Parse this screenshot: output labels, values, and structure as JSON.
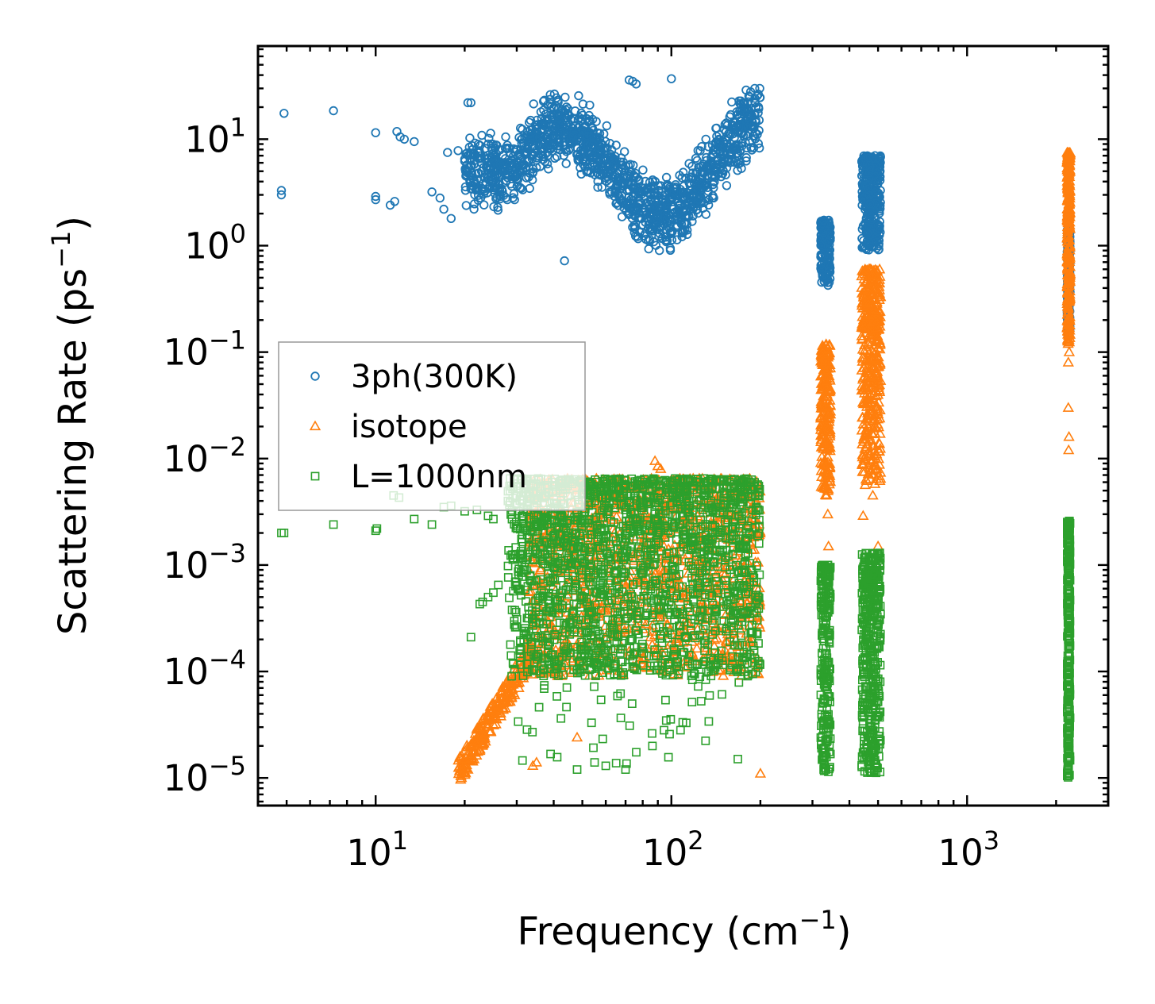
{
  "chart_data": {
    "type": "scatter",
    "xscale": "log",
    "yscale": "log",
    "xlim": [
      4,
      3000
    ],
    "ylim": [
      5.5e-06,
      75
    ],
    "xlabel": "Frequency (cm",
    "xlabel_exp": "−1",
    "xlabel_close": ")",
    "ylabel": "Scattering Rate (ps",
    "ylabel_exp": "−1",
    "ylabel_close": ")",
    "x_ticks": [
      {
        "value": 10,
        "base": "10",
        "exp": "1"
      },
      {
        "value": 100,
        "base": "10",
        "exp": "2"
      },
      {
        "value": 1000,
        "base": "10",
        "exp": "3"
      }
    ],
    "y_ticks": [
      {
        "value": 10,
        "base": "10",
        "exp": "1"
      },
      {
        "value": 1,
        "base": "10",
        "exp": "0"
      },
      {
        "value": 0.1,
        "base": "10",
        "exp": "−1"
      },
      {
        "value": 0.01,
        "base": "10",
        "exp": "−2"
      },
      {
        "value": 0.001,
        "base": "10",
        "exp": "−3"
      },
      {
        "value": 0.0001,
        "base": "10",
        "exp": "−4"
      },
      {
        "value": 1e-05,
        "base": "10",
        "exp": "−5"
      }
    ],
    "legend_position": "center-left",
    "series": [
      {
        "name": "3ph(300K)",
        "marker": "circle",
        "color": "#1f77b4",
        "clusters": [
          {
            "x": [
              4.8,
              4.8
            ],
            "y": [
              3.0,
              3.3
            ]
          },
          {
            "x": [
              4.9
            ],
            "y": [
              17.5
            ]
          },
          {
            "x": [
              7.2
            ],
            "y": [
              18.5
            ]
          },
          {
            "x": [
              10,
              10,
              10,
              11.2,
              11.6,
              11.8,
              12.1,
              12.5,
              13.5,
              15.5,
              16.5,
              17.5,
              19,
              20,
              22
            ],
            "y": [
              2.7,
              2.9,
              11.5,
              2.4,
              2.6,
              11.8,
              10.5,
              10.0,
              9.5,
              3.2,
              2.8,
              7.5,
              7.8,
              6.5,
              4.2
            ]
          },
          {
            "x": [
              17,
              18,
              20.5,
              21,
              22.5,
              24
            ],
            "y": [
              2.2,
              1.8,
              22,
              22,
              7.5,
              9.0
            ]
          },
          {
            "x": [
              43.5
            ],
            "y": [
              0.72
            ]
          },
          {
            "x": [
              72,
              74,
              76,
              100
            ],
            "y": [
              36,
              35,
              33,
              37
            ]
          },
          {
            "xmin": 20,
            "xmax": 200,
            "n": 1400,
            "wave": "3ph"
          },
          {
            "xmin": 320,
            "xmax": 345,
            "ymin": 0.42,
            "ymax": 1.75,
            "n": 160
          },
          {
            "xmin": 440,
            "xmax": 510,
            "ymin": 0.9,
            "ymax": 7.0,
            "n": 320
          },
          {
            "xmin": 2180,
            "xmax": 2230,
            "ymin": 0.14,
            "ymax": 1.4,
            "n": 200
          }
        ]
      },
      {
        "name": "isotope",
        "marker": "triangle",
        "color": "#ff7f0e",
        "clusters": [
          {
            "x": [
              19.5,
              20.5,
              21.5,
              22.5,
              23.5,
              24.5,
              25.5,
              26.5,
              27.5,
              28.5,
              29.5,
              30.5
            ],
            "y": [
              1e-05,
              1.2e-05,
              1.5e-05,
              1.8e-05,
              2.2e-05,
              2.7e-05,
              3.2e-05,
              3.8e-05,
              4.5e-05,
              5.2e-05,
              6e-05,
              7e-05
            ]
          },
          {
            "xmin": 19,
            "xmax": 34,
            "band": "ramp",
            "n": 220
          },
          {
            "xmin": 33,
            "xmax": 200,
            "ymin": 9e-05,
            "ymax": 0.0065,
            "n": 1300
          },
          {
            "x": [
              34,
              35,
              48,
              200,
              88,
              90,
              92
            ],
            "y": [
              1.3e-05,
              1.4e-05,
              2.4e-05,
              1.1e-05,
              0.0095,
              0.0085,
              0.008
            ]
          },
          {
            "xmin": 320,
            "xmax": 345,
            "ymin": 0.0045,
            "ymax": 0.12,
            "n": 220
          },
          {
            "x": [
              335,
              338,
              340
            ],
            "y": [
              0.0045,
              0.003,
              0.0015
            ]
          },
          {
            "xmin": 440,
            "xmax": 510,
            "ymin": 0.0055,
            "ymax": 0.6,
            "n": 420
          },
          {
            "x": [
              445,
              480,
              500
            ],
            "y": [
              0.0029,
              0.0045,
              0.0015
            ]
          },
          {
            "xmin": 2180,
            "xmax": 2230,
            "ymin": 0.12,
            "ymax": 7.5,
            "n": 320
          },
          {
            "x": [
              2200,
              2210,
              2205,
              2215,
              2200
            ],
            "y": [
              0.03,
              0.016,
              0.012,
              0.1,
              0.08
            ]
          }
        ]
      },
      {
        "name": "L=1000nm",
        "marker": "square",
        "color": "#2ca02c",
        "clusters": [
          {
            "x": [
              4.8,
              4.9,
              7.2,
              10,
              10.1,
              11.5,
              12,
              13.5,
              15.5,
              17,
              18,
              20,
              22,
              24,
              25,
              28,
              30
            ],
            "y": [
              0.002,
              0.002,
              0.0024,
              0.0021,
              0.0022,
              0.0045,
              0.0043,
              0.0027,
              0.0024,
              0.0035,
              0.0036,
              0.0032,
              0.0033,
              0.0029,
              0.0027,
              0.004,
              0.0045
            ]
          },
          {
            "x": [
              21,
              22.5,
              23,
              24,
              25,
              26,
              48,
              55,
              60,
              70
            ],
            "y": [
              0.00021,
              0.00043,
              0.00045,
              0.0005,
              0.00055,
              0.00065,
              1.2e-05,
              1.4e-05,
              1.3e-05,
              1.2e-05
            ]
          },
          {
            "xmin": 28,
            "xmax": 200,
            "ymin": 9e-05,
            "ymax": 0.0065,
            "n": 1800
          },
          {
            "xmin": 30,
            "xmax": 170,
            "ymin": 1.3e-05,
            "ymax": 0.00013,
            "n": 70
          },
          {
            "xmin": 320,
            "xmax": 345,
            "ymin": 1.1e-05,
            "ymax": 0.001,
            "n": 240
          },
          {
            "xmin": 440,
            "xmax": 510,
            "ymin": 1.1e-05,
            "ymax": 0.0013,
            "n": 420
          },
          {
            "xmin": 2180,
            "xmax": 2230,
            "ymin": 1e-05,
            "ymax": 0.0026,
            "n": 300
          }
        ]
      }
    ]
  }
}
